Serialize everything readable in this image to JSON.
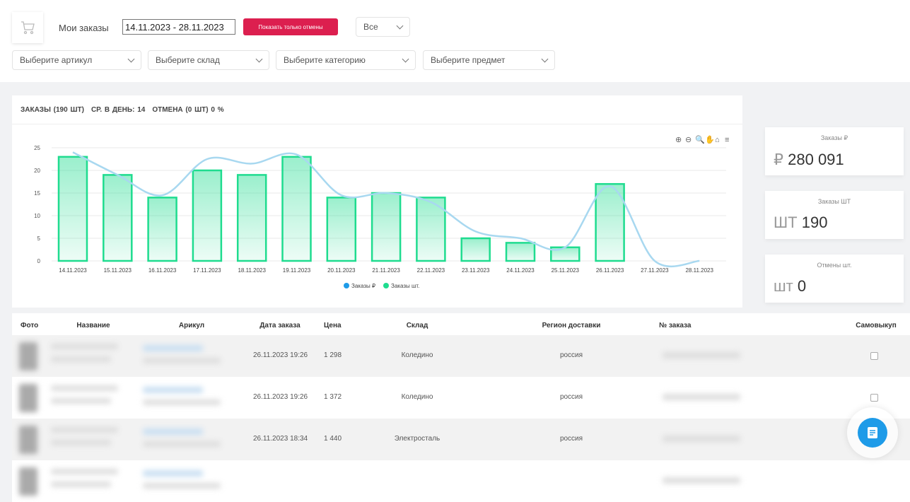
{
  "header": {
    "title": "Мои заказы",
    "date_range": "14.11.2023 - 28.11.2023",
    "cancel_button": "Показать только отмены",
    "status_select": "Все"
  },
  "filters": [
    {
      "placeholder": "Выберите артикул"
    },
    {
      "placeholder": "Выберите склад"
    },
    {
      "placeholder": "Выберите категорию"
    },
    {
      "placeholder": "Выберите предмет"
    }
  ],
  "summary": {
    "orders": "ЗАКАЗЫ (190 ШТ)",
    "avg": "СР. В ДЕНЬ: 14",
    "cancel": "ОТМЕНА (0 ШТ) 0 %"
  },
  "kpis": [
    {
      "label": "Заказы ₽",
      "currency": "₽",
      "value": "280 091"
    },
    {
      "label": "Заказы ШТ",
      "currency": "ШТ",
      "value": "190"
    },
    {
      "label": "Отмены шт.",
      "currency": "шт",
      "value": "0"
    }
  ],
  "chart_data": {
    "type": "bar",
    "categories": [
      "14.11.2023",
      "15.11.2023",
      "16.11.2023",
      "17.11.2023",
      "18.11.2023",
      "19.11.2023",
      "20.11.2023",
      "21.11.2023",
      "22.11.2023",
      "23.11.2023",
      "24.11.2023",
      "25.11.2023",
      "26.11.2023",
      "27.11.2023",
      "28.11.2023"
    ],
    "yticks": [
      0,
      5,
      10,
      15,
      20,
      25
    ],
    "ylim": [
      0,
      25
    ],
    "grid": true,
    "legend_position": "bottom",
    "series": [
      {
        "name": "Заказы ₽",
        "type": "line",
        "color": "#a8d8f0",
        "values": [
          24,
          19,
          14.5,
          22.5,
          21.5,
          23.5,
          14.5,
          15,
          13,
          6.5,
          5,
          3,
          16.5,
          0,
          0
        ]
      },
      {
        "name": "Заказы шт.",
        "type": "bar",
        "color": "#1fdc8f",
        "values": [
          23,
          19,
          14,
          20,
          19,
          23,
          14,
          15,
          14,
          5,
          4,
          3,
          17,
          0,
          0
        ]
      }
    ]
  },
  "table": {
    "headers": [
      "Фото",
      "Название",
      "Арикул",
      "Дата заказа",
      "Цена",
      "Склад",
      "Регион доставки",
      "№ заказа",
      "Самовыкуп"
    ],
    "rows": [
      {
        "date": "26.11.2023 19:26",
        "price": "1 298",
        "warehouse": "Коледино",
        "region": "россия"
      },
      {
        "date": "26.11.2023 19:26",
        "price": "1 372",
        "warehouse": "Коледино",
        "region": "россия"
      },
      {
        "date": "26.11.2023 18:34",
        "price": "1 440",
        "warehouse": "Электросталь",
        "region": "россия"
      }
    ]
  }
}
